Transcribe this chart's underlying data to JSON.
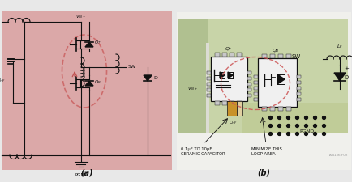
{
  "fig_width": 4.35,
  "fig_height": 2.25,
  "dpi": 100,
  "bg_color": "#e8e8e8",
  "panel_a_bg": "#dba8a8",
  "panel_b_bg": "#e8e8e8",
  "pcb_green_light": "#c8d4a8",
  "pcb_green_dark": "#b0c090",
  "pcb_white_strip": "#e8e8e0",
  "label_a": "(a)",
  "label_b": "(b)",
  "annotation1": "0.1µF TO 10µF\nCERAMIC CAPACITOR",
  "annotation2": "MINIMIZE THIS\nLOOP AREA",
  "fig_ref": "AN136 F02"
}
